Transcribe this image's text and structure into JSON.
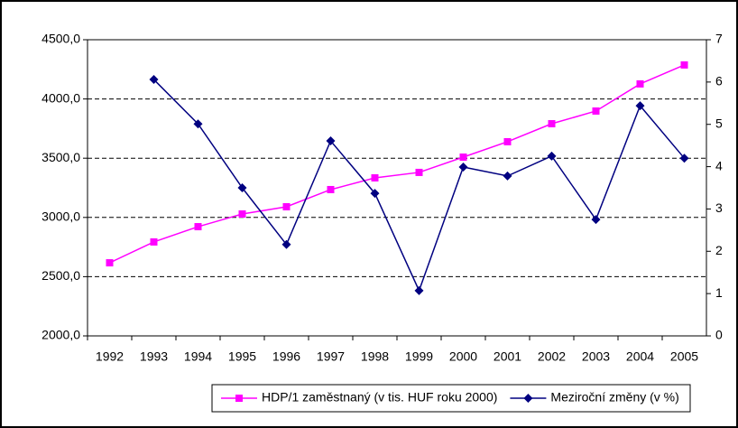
{
  "chart_data": {
    "type": "line",
    "categories": [
      "1992",
      "1993",
      "1994",
      "1995",
      "1996",
      "1997",
      "1998",
      "1999",
      "2000",
      "2001",
      "2002",
      "2003",
      "2004",
      "2005"
    ],
    "series": [
      {
        "name": "HDP/1 zaměstnaný (v tis. HUF roku 2000)",
        "color": "#ff00ff",
        "marker": "square",
        "values": [
          2617,
          2793,
          2922,
          3029,
          3090,
          3235,
          3334,
          3380,
          3509,
          3639,
          3791,
          3898,
          4127,
          4287
        ]
      },
      {
        "name": "Meziroční změny (v %)",
        "color": "#000080",
        "marker": "diamond",
        "axis": "y2",
        "values": [
          null,
          6.06,
          5.01,
          3.5,
          2.16,
          4.61,
          3.37,
          1.07,
          3.99,
          3.78,
          4.25,
          2.75,
          5.44,
          4.2
        ]
      }
    ],
    "ylim": [
      2000,
      4500
    ],
    "yticks": [
      {
        "value": 2000,
        "label": "2000,0"
      },
      {
        "value": 2500,
        "label": "2500,0"
      },
      {
        "value": 3000,
        "label": "3000,0"
      },
      {
        "value": 3500,
        "label": "3500,0"
      },
      {
        "value": 4000,
        "label": "4000,0"
      },
      {
        "value": 4500,
        "label": "4500,0"
      }
    ],
    "y2lim": [
      0,
      7
    ],
    "y2ticks": [
      0,
      1,
      2,
      3,
      4,
      5,
      6,
      7
    ],
    "grid": true,
    "legend": "bottom"
  }
}
